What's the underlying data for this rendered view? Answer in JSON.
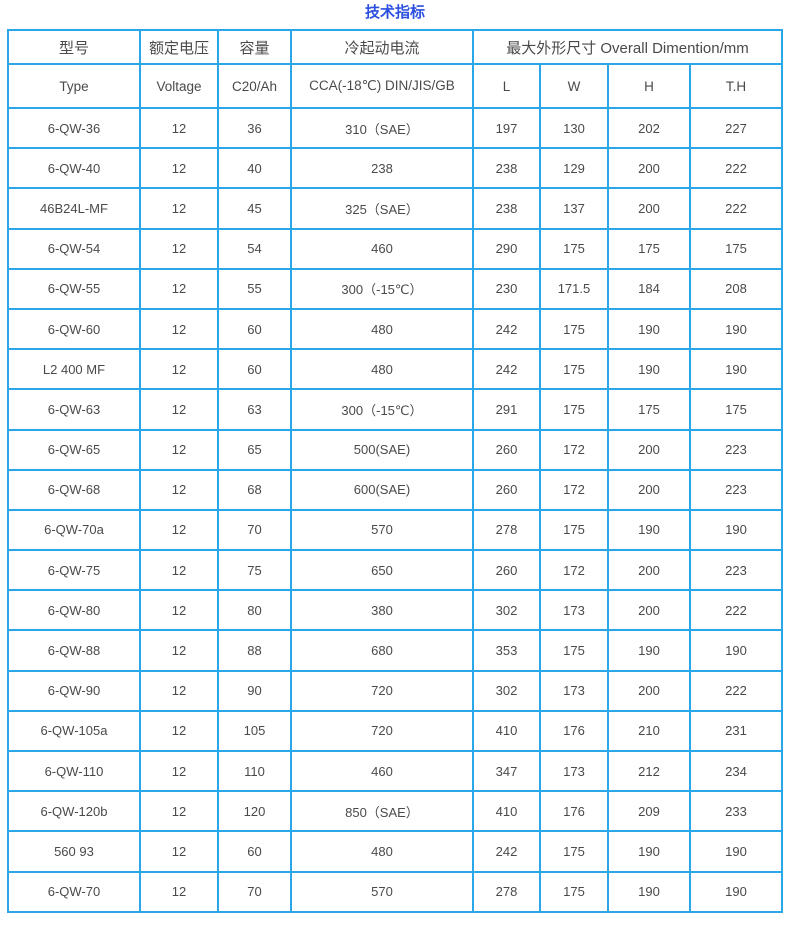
{
  "page": {
    "title": "技术指标"
  },
  "colors": {
    "accent": "#29a7e8",
    "title": "#2b50e0",
    "text": "#4a4a4a",
    "background": "#ffffff"
  },
  "table": {
    "header_row1": {
      "model": "型号",
      "voltage": "额定电压",
      "capacity": "容量",
      "cca": "冷起动电流",
      "dimensions": "最大外形尺寸 Overall Dimention/mm"
    },
    "header_row2": [
      "Type",
      "Voltage",
      "C20/Ah",
      "CCA(-18℃) DIN/JIS/GB",
      "L",
      "W",
      "H",
      "T.H"
    ],
    "rows": [
      [
        "6-QW-36",
        "12",
        "36",
        "310（SAE）",
        "197",
        "130",
        "202",
        "227"
      ],
      [
        "6-QW-40",
        "12",
        "40",
        "238",
        "238",
        "129",
        "200",
        "222"
      ],
      [
        "46B24L-MF",
        "12",
        "45",
        "325（SAE）",
        "238",
        "137",
        "200",
        "222"
      ],
      [
        "6-QW-54",
        "12",
        "54",
        "460",
        "290",
        "175",
        "175",
        "175"
      ],
      [
        "6-QW-55",
        "12",
        "55",
        "300（-15℃）",
        "230",
        "171.5",
        "184",
        "208"
      ],
      [
        "6-QW-60",
        "12",
        "60",
        "480",
        "242",
        "175",
        "190",
        "190"
      ],
      [
        "L2 400 MF",
        "12",
        "60",
        "480",
        "242",
        "175",
        "190",
        "190"
      ],
      [
        "6-QW-63",
        "12",
        "63",
        "300（-15℃）",
        "291",
        "175",
        "175",
        "175"
      ],
      [
        "6-QW-65",
        "12",
        "65",
        "500(SAE)",
        "260",
        "172",
        "200",
        "223"
      ],
      [
        "6-QW-68",
        "12",
        "68",
        "600(SAE)",
        "260",
        "172",
        "200",
        "223"
      ],
      [
        "6-QW-70a",
        "12",
        "70",
        "570",
        "278",
        "175",
        "190",
        "190"
      ],
      [
        "6-QW-75",
        "12",
        "75",
        "650",
        "260",
        "172",
        "200",
        "223"
      ],
      [
        "6-QW-80",
        "12",
        "80",
        "380",
        "302",
        "173",
        "200",
        "222"
      ],
      [
        "6-QW-88",
        "12",
        "88",
        "680",
        "353",
        "175",
        "190",
        "190"
      ],
      [
        "6-QW-90",
        "12",
        "90",
        "720",
        "302",
        "173",
        "200",
        "222"
      ],
      [
        "6-QW-105a",
        "12",
        "105",
        "720",
        "410",
        "176",
        "210",
        "231"
      ],
      [
        "6-QW-110",
        "12",
        "110",
        "460",
        "347",
        "173",
        "212",
        "234"
      ],
      [
        "6-QW-120b",
        "12",
        "120",
        "850（SAE）",
        "410",
        "176",
        "209",
        "233"
      ],
      [
        "560 93",
        "12",
        "60",
        "480",
        "242",
        "175",
        "190",
        "190"
      ],
      [
        "6-QW-70",
        "12",
        "70",
        "570",
        "278",
        "175",
        "190",
        "190"
      ]
    ]
  }
}
